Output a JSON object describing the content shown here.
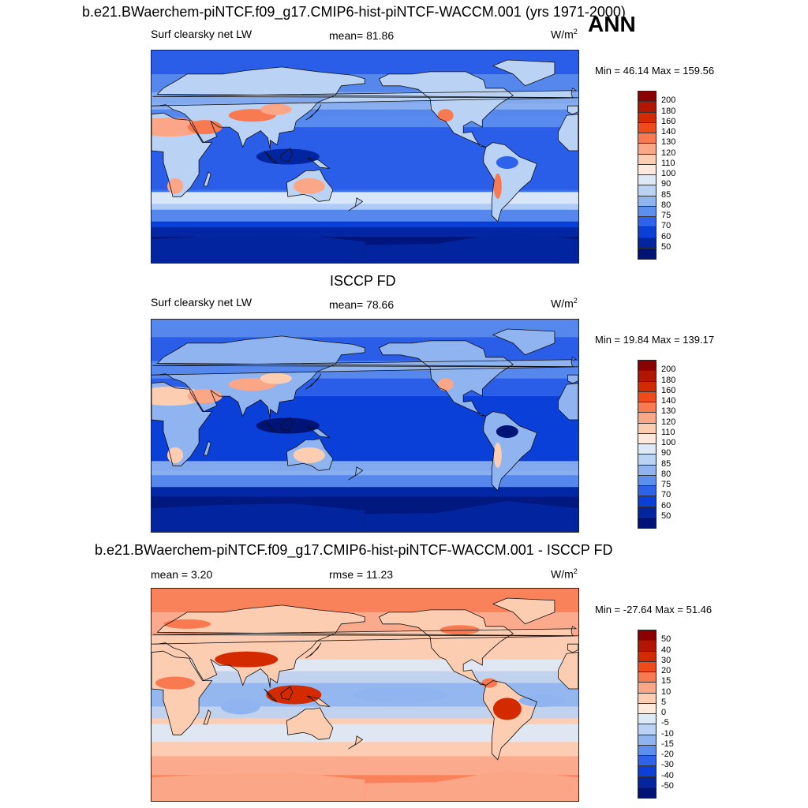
{
  "header": {
    "title": "b.e21.BWaerchem-piNTCF.f09_g17.CMIP6-hist-piNTCF-WACCM.001 (yrs 1971-2000)",
    "season": "ANN"
  },
  "panels": [
    {
      "title": "",
      "variable": "Surf clearsky net LW",
      "stat": "mean=  81.86",
      "units": "W/m",
      "units_sup": "2",
      "minmax": "Min =  46.14 Max = 159.56",
      "colorbar_labels": [
        "200",
        "180",
        "160",
        "140",
        "130",
        "120",
        "110",
        "100",
        "90",
        "85",
        "80",
        "75",
        "70",
        "60",
        "50"
      ],
      "colorbar_colors": [
        "#8b0000",
        "#b31600",
        "#d42a00",
        "#f04a1a",
        "#f97a50",
        "#fca688",
        "#fdcdb2",
        "#fee9dc",
        "#dceaf8",
        "#bad3f5",
        "#8fb4f0",
        "#5d8ff0",
        "#2d62ea",
        "#0a3fd8",
        "#02259f",
        "#001478"
      ],
      "palette": "mean"
    },
    {
      "title": "ISCCP FD",
      "variable": "Surf clearsky net LW",
      "stat": "mean=  78.66",
      "units": "W/m",
      "units_sup": "2",
      "minmax": "Min =  19.84 Max = 139.17",
      "colorbar_labels": [
        "200",
        "180",
        "160",
        "140",
        "130",
        "120",
        "110",
        "100",
        "90",
        "85",
        "80",
        "75",
        "70",
        "60",
        "50"
      ],
      "colorbar_colors": [
        "#8b0000",
        "#b31600",
        "#d42a00",
        "#f04a1a",
        "#f97a50",
        "#fca688",
        "#fdcdb2",
        "#fee9dc",
        "#dceaf8",
        "#bad3f5",
        "#8fb4f0",
        "#5d8ff0",
        "#2d62ea",
        "#0a3fd8",
        "#02259f",
        "#001478"
      ],
      "palette": "obs"
    },
    {
      "title": "b.e21.BWaerchem-piNTCF.f09_g17.CMIP6-hist-piNTCF-WACCM.001 - ISCCP FD",
      "variable": "mean =   3.20",
      "stat": "rmse =  11.23",
      "units": "W/m",
      "units_sup": "2",
      "minmax": "Min = -27.64 Max =  51.46",
      "colorbar_labels": [
        "50",
        "40",
        "30",
        "20",
        "15",
        "10",
        "5",
        "0",
        "-5",
        "-10",
        "-15",
        "-20",
        "-30",
        "-40",
        "-50"
      ],
      "colorbar_colors": [
        "#8b0000",
        "#b31600",
        "#d42a00",
        "#f04a1a",
        "#f97a50",
        "#fca688",
        "#fdcdb2",
        "#fee9dc",
        "#dceaf8",
        "#bad3f5",
        "#8fb4f0",
        "#5d8ff0",
        "#2d62ea",
        "#0a3fd8",
        "#02259f",
        "#001478"
      ],
      "palette": "diff"
    }
  ]
}
